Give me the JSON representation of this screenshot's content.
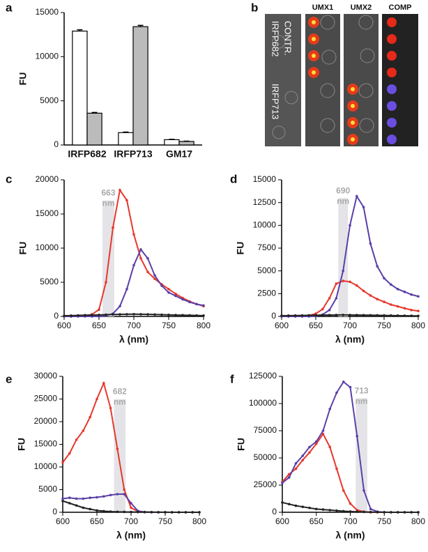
{
  "image_panel": {
    "panel": "b",
    "columns": [
      "UMX1",
      "UMX2",
      "COMP"
    ],
    "row_labels": [
      "CONTR.",
      "IRFP682",
      "IRFP713"
    ]
  },
  "chart_data": [
    {
      "type": "bar",
      "panel": "a",
      "ylabel": "FU",
      "categories": [
        "IRFP682",
        "IRFP713",
        "GM17"
      ],
      "series": [
        {
          "color": "#ffffff",
          "values": [
            12900,
            1400,
            600
          ],
          "errors": [
            150,
            60,
            40
          ]
        },
        {
          "color": "#bbbbbb",
          "values": [
            3600,
            13400,
            400
          ],
          "errors": [
            80,
            150,
            30
          ]
        }
      ],
      "ylim": [
        0,
        15000
      ],
      "yticks": [
        0,
        5000,
        10000,
        15000
      ]
    },
    {
      "type": "line",
      "panel": "c",
      "ylabel": "FU",
      "xlabel": "λ (nm)",
      "x": [
        600,
        610,
        620,
        630,
        640,
        650,
        660,
        670,
        680,
        690,
        700,
        710,
        720,
        730,
        740,
        750,
        760,
        770,
        780,
        790,
        800
      ],
      "series": [
        {
          "color": "#e8372c",
          "values": [
            0,
            0,
            50,
            100,
            300,
            1000,
            5000,
            13000,
            18500,
            17000,
            12000,
            8500,
            6500,
            5500,
            4700,
            4000,
            3300,
            2700,
            2200,
            1800,
            1500
          ]
        },
        {
          "color": "#5b3fa8",
          "values": [
            0,
            0,
            0,
            0,
            0,
            0,
            100,
            400,
            1500,
            4000,
            7500,
            9800,
            8500,
            6000,
            4500,
            3500,
            3000,
            2500,
            2100,
            1800,
            1600
          ]
        },
        {
          "color": "#222222",
          "values": [
            100,
            120,
            150,
            180,
            200,
            220,
            250,
            280,
            300,
            320,
            330,
            320,
            300,
            280,
            250,
            230,
            200,
            180,
            160,
            140,
            120
          ]
        }
      ],
      "band": {
        "xrange": [
          655,
          672
        ],
        "top": 17000,
        "label": "663",
        "unit": "nm"
      },
      "xlim": [
        600,
        800
      ],
      "xticks": [
        600,
        650,
        700,
        750,
        800
      ],
      "ylim": [
        0,
        20000
      ],
      "yticks": [
        0,
        5000,
        10000,
        15000,
        20000
      ]
    },
    {
      "type": "line",
      "panel": "d",
      "ylabel": "FU",
      "xlabel": "λ (nm)",
      "x": [
        600,
        610,
        620,
        630,
        640,
        650,
        660,
        670,
        680,
        690,
        700,
        710,
        720,
        730,
        740,
        750,
        760,
        770,
        780,
        790,
        800
      ],
      "series": [
        {
          "color": "#e8372c",
          "values": [
            0,
            0,
            0,
            50,
            100,
            300,
            800,
            2000,
            3600,
            3900,
            3800,
            3400,
            2800,
            2300,
            1900,
            1600,
            1300,
            1100,
            900,
            700,
            600
          ]
        },
        {
          "color": "#5b3fa8",
          "values": [
            0,
            0,
            0,
            0,
            0,
            50,
            200,
            700,
            2000,
            5000,
            10000,
            13200,
            12000,
            8000,
            5500,
            4200,
            3500,
            3000,
            2700,
            2400,
            2200
          ]
        },
        {
          "color": "#222222",
          "values": [
            80,
            90,
            100,
            110,
            120,
            130,
            140,
            150,
            160,
            160,
            160,
            150,
            140,
            130,
            120,
            110,
            100,
            90,
            80,
            70,
            60
          ]
        }
      ],
      "band": {
        "xrange": [
          683,
          697
        ],
        "top": 13000,
        "label": "690",
        "unit": "nm"
      },
      "xlim": [
        600,
        800
      ],
      "xticks": [
        600,
        650,
        700,
        750,
        800
      ],
      "ylim": [
        0,
        15000
      ],
      "yticks": [
        0,
        2500,
        5000,
        7500,
        10000,
        12500,
        15000
      ]
    },
    {
      "type": "line",
      "panel": "e",
      "ylabel": "FU",
      "xlabel": "λ (nm)",
      "x": [
        600,
        610,
        620,
        630,
        640,
        650,
        660,
        670,
        680,
        690,
        700,
        710,
        720,
        730,
        740,
        750,
        760,
        770,
        780,
        790,
        800
      ],
      "series": [
        {
          "color": "#e8372c",
          "values": [
            11000,
            13000,
            16000,
            18000,
            21000,
            25000,
            28500,
            23000,
            14000,
            5000,
            1000,
            200,
            50,
            0,
            0,
            0,
            0,
            0,
            0,
            0,
            0
          ]
        },
        {
          "color": "#5b3fa8",
          "values": [
            3000,
            3200,
            3000,
            3000,
            3200,
            3300,
            3500,
            3800,
            4000,
            4000,
            2000,
            300,
            50,
            0,
            0,
            0,
            0,
            0,
            0,
            0,
            0
          ]
        },
        {
          "color": "#222222",
          "values": [
            2500,
            2000,
            1500,
            1000,
            700,
            400,
            250,
            150,
            100,
            80,
            60,
            50,
            40,
            30,
            20,
            10,
            0,
            0,
            0,
            0,
            0
          ]
        }
      ],
      "band": {
        "xrange": [
          675,
          692
        ],
        "top": 25000,
        "label": "682",
        "unit": "nm"
      },
      "xlim": [
        600,
        800
      ],
      "xticks": [
        600,
        650,
        700,
        750,
        800
      ],
      "ylim": [
        0,
        30000
      ],
      "yticks": [
        0,
        5000,
        10000,
        15000,
        20000,
        25000,
        30000
      ]
    },
    {
      "type": "line",
      "panel": "f",
      "ylabel": "FU",
      "xlabel": "λ (nm)",
      "x": [
        600,
        610,
        620,
        630,
        640,
        650,
        660,
        670,
        680,
        690,
        700,
        710,
        720,
        730,
        740,
        750,
        760,
        770,
        780,
        790,
        800
      ],
      "series": [
        {
          "color": "#e8372c",
          "values": [
            28000,
            35000,
            40000,
            48000,
            55000,
            63000,
            72000,
            60000,
            40000,
            20000,
            8000,
            2000,
            500,
            0,
            0,
            0,
            0,
            0,
            0,
            0,
            0
          ]
        },
        {
          "color": "#5b3fa8",
          "values": [
            27000,
            32000,
            45000,
            52000,
            60000,
            65000,
            75000,
            95000,
            110000,
            120000,
            115000,
            70000,
            20000,
            3000,
            500,
            0,
            0,
            0,
            0,
            0,
            0
          ]
        },
        {
          "color": "#222222",
          "values": [
            9000,
            7500,
            6000,
            5000,
            4000,
            3000,
            2500,
            2000,
            1500,
            1000,
            700,
            500,
            300,
            200,
            100,
            50,
            0,
            0,
            0,
            0,
            0
          ]
        }
      ],
      "band": {
        "xrange": [
          708,
          725
        ],
        "top": 105000,
        "label": "713",
        "unit": "nm"
      },
      "xlim": [
        600,
        800
      ],
      "xticks": [
        600,
        650,
        700,
        750,
        800
      ],
      "ylim": [
        0,
        125000
      ],
      "yticks": [
        0,
        25000,
        50000,
        75000,
        100000,
        125000
      ]
    }
  ]
}
